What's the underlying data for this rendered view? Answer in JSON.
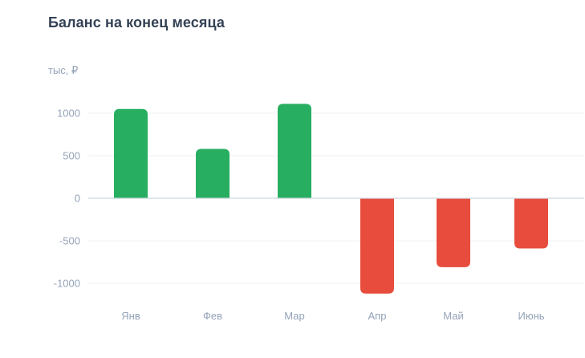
{
  "header": {
    "title": "Баланс на конец месяца",
    "unit": "тыс, ₽"
  },
  "colors": {
    "positive": "#27ae60",
    "negative": "#e74c3c",
    "grid": "#eef0f3",
    "zero_line": "#cfd6de",
    "tick_text": "#94a3b8"
  },
  "chart_data": {
    "type": "bar",
    "title": "Баланс на конец месяца",
    "ylabel": "тыс, ₽",
    "xlabel": "",
    "categories": [
      "Янв",
      "Фев",
      "Мар",
      "Апр",
      "Май",
      "Июнь"
    ],
    "values": [
      1050,
      580,
      1110,
      -1120,
      -810,
      -590
    ],
    "ylim": [
      -1000,
      1000
    ],
    "yticks": [
      1000,
      500,
      0,
      -500,
      -1000
    ],
    "ytick_labels": [
      "1000",
      "500",
      "0",
      "-500",
      "-1000"
    ],
    "grid": true,
    "legend": "none"
  }
}
